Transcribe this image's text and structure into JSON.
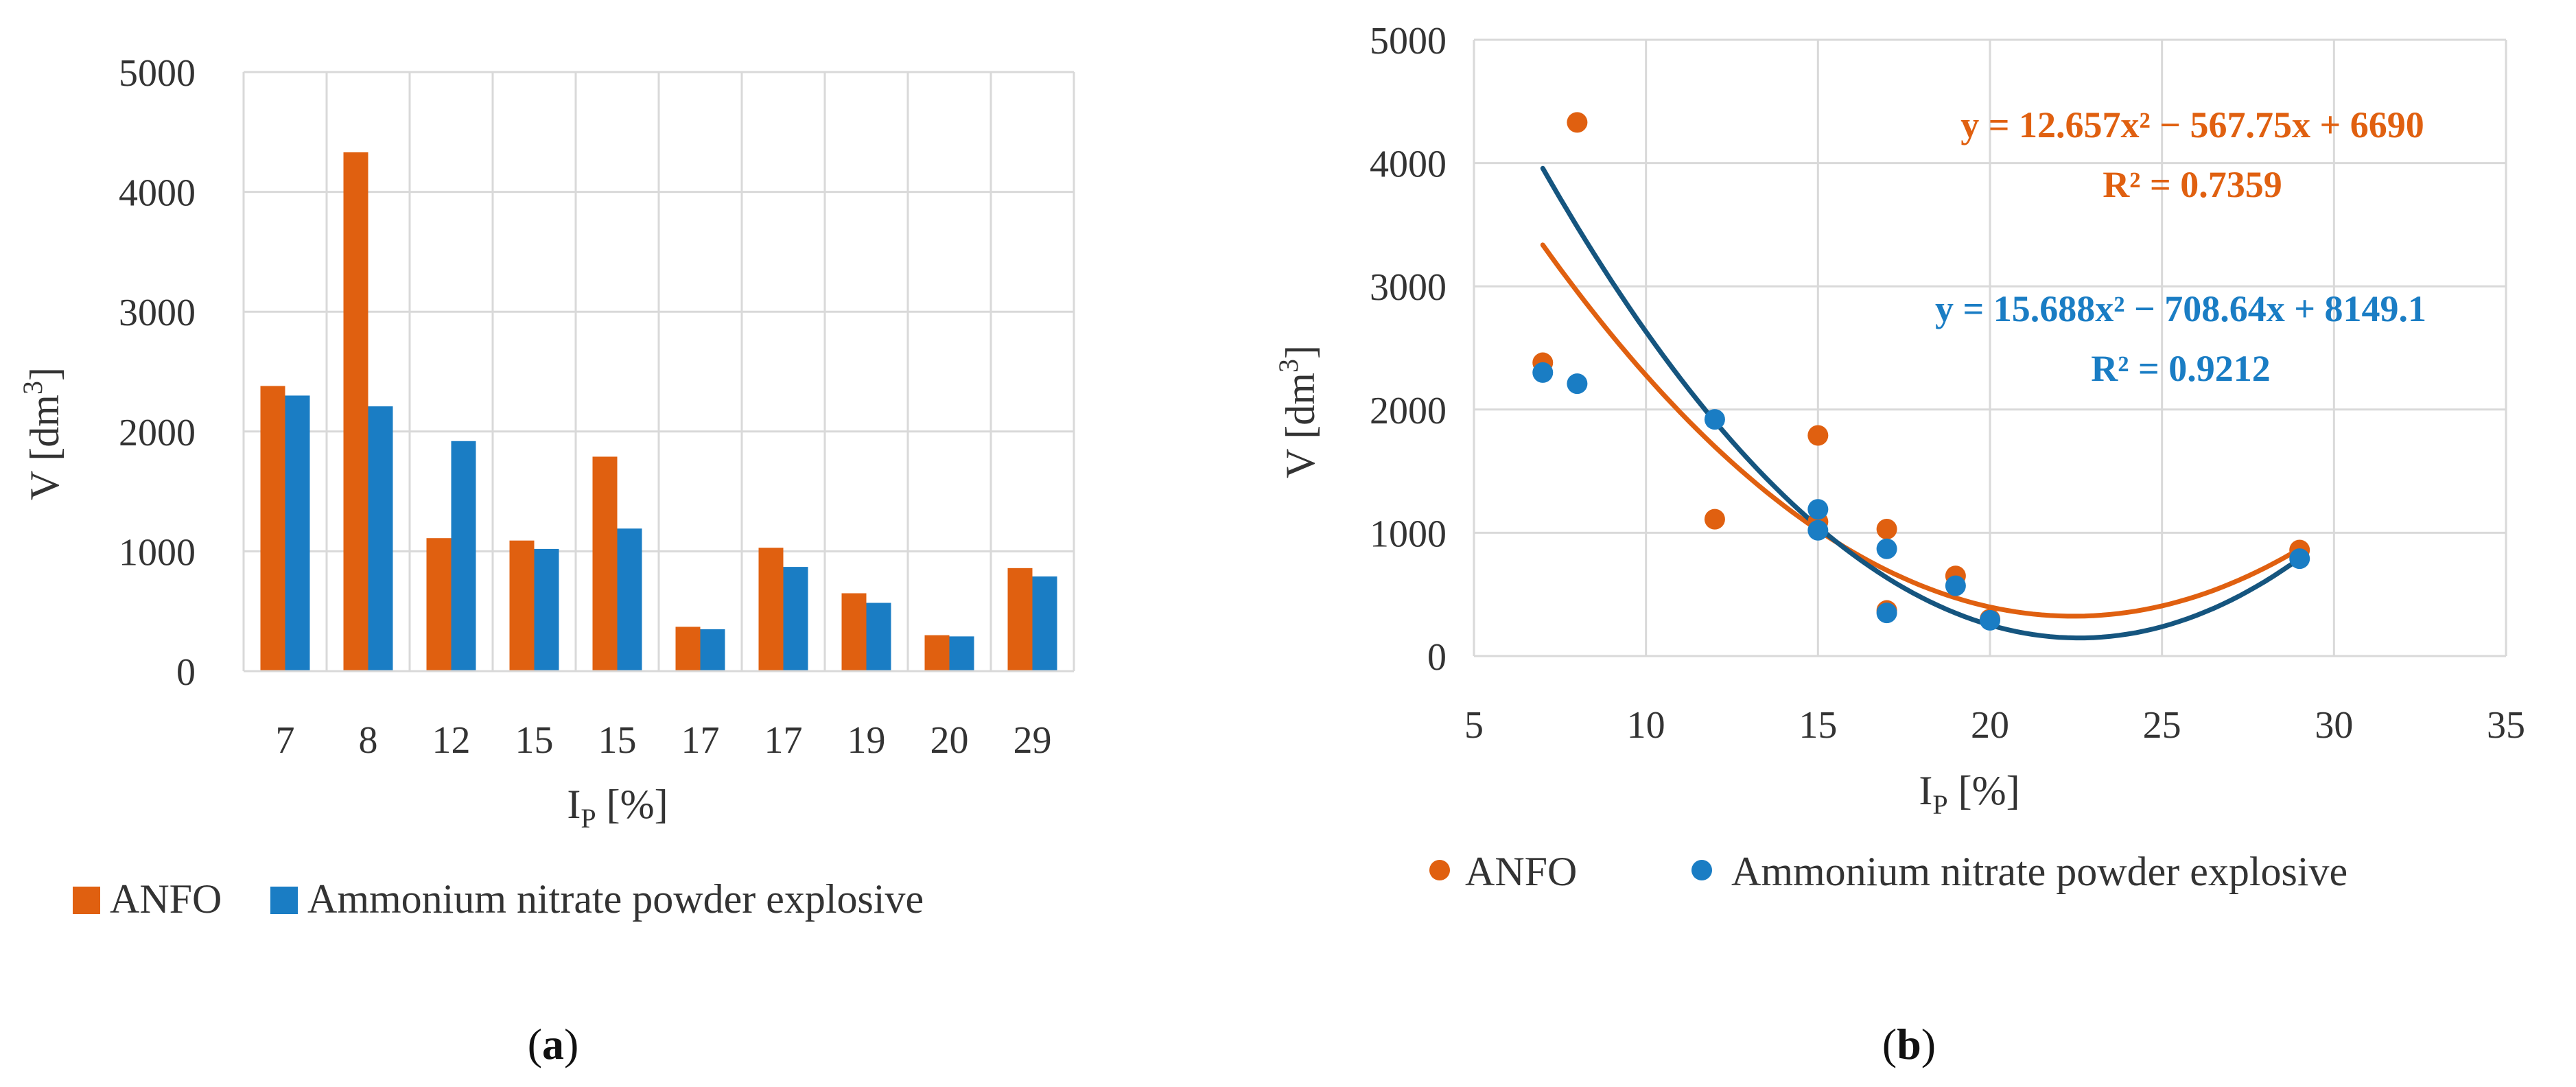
{
  "colors": {
    "anfo": "#e06010",
    "anpe": "#1a7dc4",
    "anpe_trend": "#15557f"
  },
  "chart_data": [
    {
      "type": "bar",
      "panel_label": "a",
      "categories": [
        "7",
        "8",
        "12",
        "15",
        "15",
        "17",
        "17",
        "19",
        "20",
        "29"
      ],
      "series": [
        {
          "name": "ANFO",
          "values": [
            2380,
            4330,
            1110,
            1090,
            1790,
            370,
            1030,
            650,
            300,
            860
          ]
        },
        {
          "name": "Ammonium nitrate powder explosive",
          "values": [
            2300,
            2210,
            1920,
            1020,
            1190,
            350,
            870,
            570,
            290,
            790
          ]
        }
      ],
      "ylim": [
        0,
        5000
      ],
      "yticks": [
        "0",
        "1000",
        "2000",
        "3000",
        "4000",
        "5000"
      ],
      "xlabel": {
        "main": "I",
        "sub": "P",
        "rest": " [%]"
      },
      "ylabel": {
        "main": "V [dm",
        "sup": "3",
        "rest": "]"
      },
      "legend": [
        "ANFO",
        "Ammonium nitrate powder explosive"
      ]
    },
    {
      "type": "scatter",
      "panel_label": "b",
      "series": [
        {
          "name": "ANFO",
          "x": [
            7,
            8,
            12,
            15,
            15,
            17,
            17,
            19,
            20,
            29
          ],
          "y": [
            2380,
            4330,
            1110,
            1090,
            1790,
            370,
            1030,
            650,
            300,
            860
          ]
        },
        {
          "name": "Ammonium nitrate powder explosive",
          "x": [
            7,
            8,
            12,
            15,
            15,
            17,
            17,
            19,
            20,
            29
          ],
          "y": [
            2300,
            2210,
            1920,
            1020,
            1190,
            350,
            870,
            570,
            290,
            790
          ]
        }
      ],
      "trendlines": [
        {
          "series": "ANFO",
          "coeffs": [
            12.657,
            -567.75,
            6690
          ],
          "equation": "y = 12.657x² − 567.75x + 6690",
          "r2": "R² = 0.7359"
        },
        {
          "series": "Ammonium nitrate powder explosive",
          "coeffs": [
            15.688,
            -708.64,
            8149.1
          ],
          "equation": "y = 15.688x² − 708.64x + 8149.1",
          "r2": "R² = 0.9212"
        }
      ],
      "xlim": [
        5,
        35
      ],
      "ylim": [
        0,
        5000
      ],
      "xticks": [
        "5",
        "10",
        "15",
        "20",
        "25",
        "30",
        "35"
      ],
      "yticks": [
        "0",
        "1000",
        "2000",
        "3000",
        "4000",
        "5000"
      ],
      "xlabel": {
        "main": "I",
        "sub": "P",
        "rest": " [%]"
      },
      "ylabel": {
        "main": "V [dm",
        "sup": "3",
        "rest": "]"
      },
      "legend": [
        "ANFO",
        "Ammonium nitrate powder explosive"
      ]
    }
  ]
}
